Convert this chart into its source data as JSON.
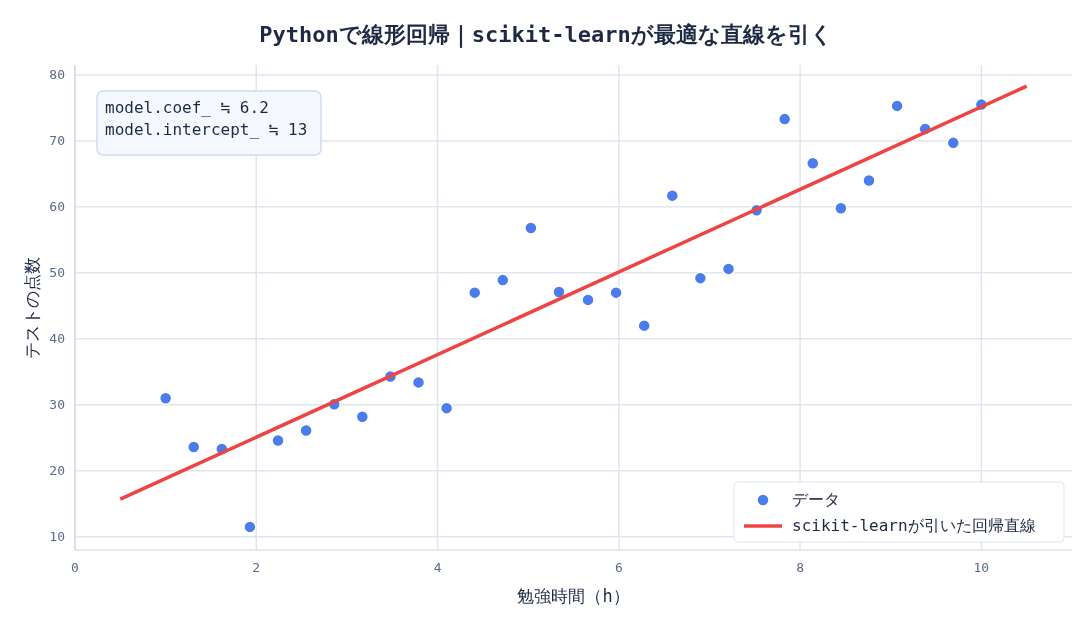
{
  "chart_data": {
    "type": "scatter",
    "title": "Pythonで線形回帰｜scikit-learnが最適な直線を引く",
    "xlabel": "勉強時間（h）",
    "ylabel": "テストの点数",
    "annotations": [
      "model.coef_ ≒ 6.2\nmodel.intercept_ ≒ 13"
    ],
    "xlim": [
      0,
      11
    ],
    "xticks": [
      0,
      2,
      4,
      6,
      8,
      10
    ],
    "ylim": [
      8,
      81.5
    ],
    "yticks": [
      10,
      20,
      30,
      40,
      50,
      60,
      70,
      80
    ],
    "grid": true,
    "legend": "bottom right",
    "series": [
      {
        "name": "データ",
        "type": "scatter",
        "color": "#4a7cec",
        "marker": "circle",
        "x": [
          1.0,
          1.31,
          1.62,
          1.93,
          2.24,
          2.55,
          2.86,
          3.17,
          3.48,
          3.79,
          4.1,
          4.41,
          4.72,
          5.03,
          5.34,
          5.66,
          5.97,
          6.28,
          6.59,
          6.9,
          7.21,
          7.52,
          7.83,
          8.14,
          8.45,
          8.76,
          9.07,
          9.38,
          9.69,
          10.0
        ],
        "values": [
          31.0,
          23.6,
          23.3,
          11.5,
          24.6,
          26.1,
          30.1,
          28.2,
          34.3,
          33.4,
          29.5,
          47.0,
          48.9,
          56.8,
          47.1,
          45.9,
          47.0,
          42.0,
          61.7,
          49.2,
          50.6,
          59.5,
          73.3,
          66.6,
          59.8,
          64.0,
          75.3,
          71.8,
          69.7,
          75.5
        ]
      },
      {
        "name": "scikit-learnが引いた回帰直線",
        "type": "line",
        "color": "#ee4444",
        "line_style": "solid",
        "marker": "none",
        "x": [
          0.5,
          10.5
        ],
        "values": [
          15.7,
          78.3
        ]
      }
    ]
  }
}
